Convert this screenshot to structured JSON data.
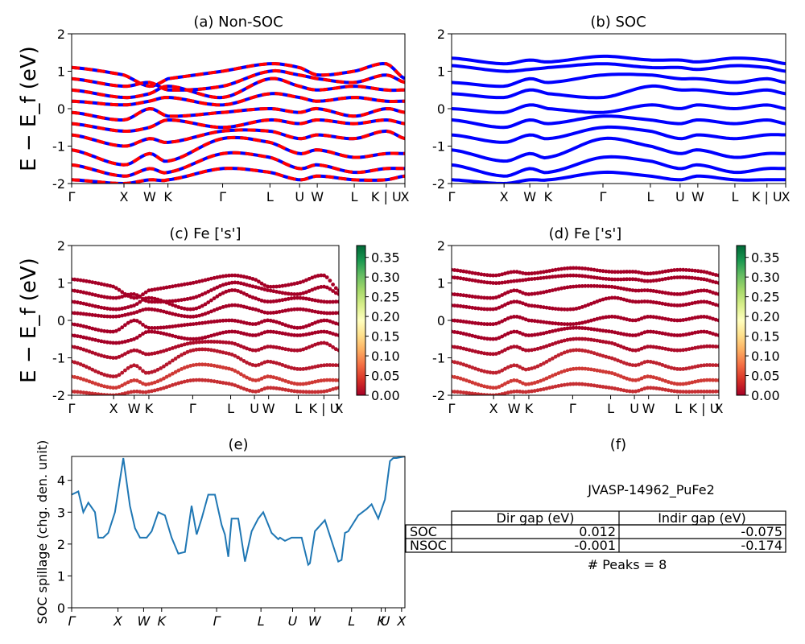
{
  "colors": {
    "blue": "#0000ff",
    "red": "#ff0000",
    "spillage_line": "#1f77b4",
    "projection_low": "#a50026",
    "projection_high": "#006837"
  },
  "kpath_labels": [
    "Γ",
    "X",
    "W",
    "K",
    "Γ",
    "L",
    "U",
    "W",
    "L",
    "K | U",
    "X"
  ],
  "spillage_kpath_labels": [
    "Γ",
    "X",
    "W",
    "K",
    "Γ",
    "L",
    "U",
    "W",
    "L",
    "K",
    "U",
    "X"
  ],
  "ylabel_energy": "E − E_f (eV)",
  "ylabel_spillage": "SOC spillage (chg. den. unit)",
  "colorbar_ticks": [
    "0.00",
    "0.05",
    "0.10",
    "0.15",
    "0.20",
    "0.25",
    "0.30",
    "0.35"
  ],
  "chart_data": [
    {
      "panel": "a",
      "type": "line",
      "title": "(a) Non-SOC",
      "ylabel": "E − E_f (eV)",
      "ylim": [
        -2,
        2
      ],
      "yticks": [
        -2,
        -1,
        0,
        1,
        2
      ],
      "series": [
        {
          "values": [
            1.1,
            0.9,
            0.6,
            0.8,
            1.0,
            1.2,
            1.1,
            0.9,
            1.0,
            1.2,
            0.8
          ]
        },
        {
          "values": [
            0.8,
            0.6,
            0.7,
            0.5,
            0.6,
            1.0,
            0.9,
            0.8,
            0.7,
            0.9,
            0.7
          ]
        },
        {
          "values": [
            0.5,
            0.3,
            0.4,
            0.6,
            0.3,
            0.8,
            0.6,
            0.5,
            0.6,
            0.5,
            0.5
          ]
        },
        {
          "values": [
            0.2,
            0.1,
            0.2,
            0.3,
            0.1,
            0.4,
            0.3,
            0.2,
            0.3,
            0.2,
            0.2
          ]
        },
        {
          "values": [
            -0.1,
            -0.3,
            0.0,
            -0.2,
            -0.1,
            0.0,
            -0.1,
            0.0,
            -0.2,
            0.0,
            -0.1
          ]
        },
        {
          "values": [
            -0.4,
            -0.6,
            -0.5,
            -0.3,
            -0.5,
            -0.3,
            -0.4,
            -0.3,
            -0.4,
            -0.3,
            -0.4
          ]
        },
        {
          "values": [
            -0.7,
            -1.0,
            -0.8,
            -0.9,
            -0.6,
            -0.6,
            -0.8,
            -0.7,
            -0.8,
            -0.6,
            -0.8
          ]
        },
        {
          "values": [
            -1.1,
            -1.5,
            -1.2,
            -1.4,
            -0.8,
            -0.9,
            -1.2,
            -1.1,
            -1.3,
            -1.2,
            -1.2
          ]
        },
        {
          "values": [
            -1.5,
            -1.8,
            -1.6,
            -1.7,
            -1.2,
            -1.3,
            -1.6,
            -1.5,
            -1.7,
            -1.6,
            -1.6
          ]
        },
        {
          "values": [
            -1.9,
            -2.0,
            -1.9,
            -1.9,
            -1.6,
            -1.7,
            -1.9,
            -1.8,
            -1.9,
            -1.9,
            -1.8
          ]
        }
      ]
    },
    {
      "panel": "b",
      "type": "line",
      "title": "(b) SOC",
      "ylim": [
        -2,
        2
      ],
      "yticks": [
        -2,
        -1,
        0,
        1,
        2
      ],
      "series": [
        {
          "values": [
            1.35,
            1.2,
            1.3,
            1.25,
            1.4,
            1.3,
            1.3,
            1.25,
            1.35,
            1.3,
            1.2
          ]
        },
        {
          "values": [
            1.15,
            1.0,
            1.05,
            1.1,
            1.2,
            1.1,
            1.1,
            1.05,
            1.15,
            1.1,
            1.0
          ]
        },
        {
          "values": [
            0.7,
            0.6,
            0.8,
            0.7,
            0.9,
            0.9,
            0.8,
            0.8,
            0.7,
            0.8,
            0.7
          ]
        },
        {
          "values": [
            0.4,
            0.3,
            0.5,
            0.4,
            0.3,
            0.6,
            0.5,
            0.5,
            0.4,
            0.5,
            0.4
          ]
        },
        {
          "values": [
            0.0,
            -0.1,
            0.1,
            0.0,
            -0.1,
            0.1,
            0.0,
            0.1,
            0.0,
            0.1,
            0.0
          ]
        },
        {
          "values": [
            -0.3,
            -0.5,
            -0.3,
            -0.4,
            -0.2,
            -0.3,
            -0.4,
            -0.3,
            -0.4,
            -0.3,
            -0.4
          ]
        },
        {
          "values": [
            -0.7,
            -0.9,
            -0.7,
            -0.8,
            -0.5,
            -0.6,
            -0.8,
            -0.7,
            -0.8,
            -0.7,
            -0.7
          ]
        },
        {
          "values": [
            -1.1,
            -1.4,
            -1.2,
            -1.3,
            -0.8,
            -1.0,
            -1.2,
            -1.1,
            -1.3,
            -1.2,
            -1.2
          ]
        },
        {
          "values": [
            -1.5,
            -1.8,
            -1.6,
            -1.7,
            -1.3,
            -1.4,
            -1.6,
            -1.5,
            -1.7,
            -1.6,
            -1.6
          ]
        },
        {
          "values": [
            -1.9,
            -2.0,
            -1.9,
            -1.9,
            -1.7,
            -1.8,
            -1.9,
            -1.8,
            -1.9,
            -1.9,
            -1.9
          ]
        }
      ]
    },
    {
      "panel": "c",
      "type": "scatter",
      "title": "(c)  Fe ['s']",
      "ylabel": "E − E_f (eV)",
      "ylim": [
        -2,
        2
      ],
      "yticks": [
        -2,
        -1,
        0,
        1,
        2
      ],
      "colorbar_range": [
        0,
        0.38
      ],
      "series": [
        {
          "values": [
            1.1,
            0.9,
            0.6,
            0.8,
            1.0,
            1.2,
            1.1,
            0.9,
            1.0,
            1.2,
            0.8
          ],
          "weight": 0.0
        },
        {
          "values": [
            0.8,
            0.6,
            0.7,
            0.5,
            0.6,
            1.0,
            0.9,
            0.8,
            0.7,
            0.9,
            0.7
          ],
          "weight": 0.0
        },
        {
          "values": [
            0.5,
            0.3,
            0.4,
            0.6,
            0.3,
            0.8,
            0.6,
            0.5,
            0.6,
            0.5,
            0.5
          ],
          "weight": 0.0
        },
        {
          "values": [
            0.2,
            0.1,
            0.2,
            0.3,
            0.1,
            0.4,
            0.3,
            0.2,
            0.3,
            0.2,
            0.2
          ],
          "weight": 0.0
        },
        {
          "values": [
            -0.1,
            -0.3,
            0.0,
            -0.2,
            -0.1,
            0.0,
            -0.1,
            0.0,
            -0.2,
            0.0,
            -0.1
          ],
          "weight": 0.0
        },
        {
          "values": [
            -0.4,
            -0.6,
            -0.5,
            -0.3,
            -0.5,
            -0.3,
            -0.4,
            -0.3,
            -0.4,
            -0.3,
            -0.4
          ],
          "weight": 0.0
        },
        {
          "values": [
            -0.7,
            -1.0,
            -0.8,
            -0.9,
            -0.6,
            -0.6,
            -0.8,
            -0.7,
            -0.8,
            -0.6,
            -0.8
          ],
          "weight": 0.01
        },
        {
          "values": [
            -1.1,
            -1.5,
            -1.2,
            -1.4,
            -0.8,
            -0.9,
            -1.2,
            -1.1,
            -1.3,
            -1.2,
            -1.2
          ],
          "weight": 0.02
        },
        {
          "values": [
            -1.5,
            -1.8,
            -1.6,
            -1.7,
            -1.2,
            -1.3,
            -1.6,
            -1.5,
            -1.7,
            -1.6,
            -1.6
          ],
          "weight": 0.05
        },
        {
          "values": [
            -1.9,
            -2.0,
            -1.9,
            -1.9,
            -1.6,
            -1.7,
            -1.9,
            -1.8,
            -1.9,
            -1.9,
            -1.8
          ],
          "weight": 0.04
        }
      ]
    },
    {
      "panel": "d",
      "type": "scatter",
      "title": "(d) Fe ['s']",
      "ylim": [
        -2,
        2
      ],
      "yticks": [
        -2,
        -1,
        0,
        1,
        2
      ],
      "colorbar_range": [
        0,
        0.38
      ],
      "series": [
        {
          "values": [
            1.35,
            1.2,
            1.3,
            1.25,
            1.4,
            1.3,
            1.3,
            1.25,
            1.35,
            1.3,
            1.2
          ],
          "weight": 0.0
        },
        {
          "values": [
            1.15,
            1.0,
            1.05,
            1.1,
            1.2,
            1.1,
            1.1,
            1.05,
            1.15,
            1.1,
            1.0
          ],
          "weight": 0.0
        },
        {
          "values": [
            0.7,
            0.6,
            0.8,
            0.7,
            0.9,
            0.9,
            0.8,
            0.8,
            0.7,
            0.8,
            0.7
          ],
          "weight": 0.0
        },
        {
          "values": [
            0.4,
            0.3,
            0.5,
            0.4,
            0.3,
            0.6,
            0.5,
            0.5,
            0.4,
            0.5,
            0.4
          ],
          "weight": 0.0
        },
        {
          "values": [
            0.0,
            -0.1,
            0.1,
            0.0,
            -0.1,
            0.1,
            0.0,
            0.1,
            0.0,
            0.1,
            0.0
          ],
          "weight": 0.0
        },
        {
          "values": [
            -0.3,
            -0.5,
            -0.3,
            -0.4,
            -0.2,
            -0.3,
            -0.4,
            -0.3,
            -0.4,
            -0.3,
            -0.4
          ],
          "weight": 0.0
        },
        {
          "values": [
            -0.7,
            -0.9,
            -0.7,
            -0.8,
            -0.5,
            -0.6,
            -0.8,
            -0.7,
            -0.8,
            -0.7,
            -0.7
          ],
          "weight": 0.01
        },
        {
          "values": [
            -1.1,
            -1.4,
            -1.2,
            -1.3,
            -0.8,
            -1.0,
            -1.2,
            -1.1,
            -1.3,
            -1.2,
            -1.2
          ],
          "weight": 0.03
        },
        {
          "values": [
            -1.5,
            -1.8,
            -1.6,
            -1.7,
            -1.3,
            -1.4,
            -1.6,
            -1.5,
            -1.7,
            -1.6,
            -1.6
          ],
          "weight": 0.05
        },
        {
          "values": [
            -1.9,
            -2.0,
            -1.9,
            -1.9,
            -1.7,
            -1.8,
            -1.9,
            -1.8,
            -1.9,
            -1.9,
            -1.9
          ],
          "weight": 0.04
        }
      ]
    },
    {
      "panel": "e",
      "type": "line",
      "title": "(e)",
      "ylabel": "SOC spillage (chg. den. unit)",
      "ylim": [
        0,
        4.75
      ],
      "yticks": [
        0,
        1,
        2,
        3,
        4
      ],
      "x": [
        0,
        0.02,
        0.035,
        0.05,
        0.07,
        0.08,
        0.095,
        0.11,
        0.13,
        0.155,
        0.175,
        0.19,
        0.205,
        0.225,
        0.24,
        0.26,
        0.28,
        0.3,
        0.32,
        0.34,
        0.36,
        0.375,
        0.39,
        0.41,
        0.43,
        0.45,
        0.46,
        0.47,
        0.48,
        0.5,
        0.52,
        0.54,
        0.56,
        0.575,
        0.6,
        0.62,
        0.625,
        0.64,
        0.66,
        0.69,
        0.71,
        0.715,
        0.73,
        0.76,
        0.8,
        0.81,
        0.82,
        0.83,
        0.86,
        0.885,
        0.9,
        0.92,
        0.94,
        0.955,
        0.965,
        0.975,
        1.0
      ],
      "values": [
        3.55,
        3.65,
        3.0,
        3.3,
        3.0,
        2.2,
        2.2,
        2.35,
        3.0,
        4.7,
        3.2,
        2.5,
        2.2,
        2.2,
        2.4,
        3.0,
        2.9,
        2.2,
        1.7,
        1.75,
        3.2,
        2.3,
        2.8,
        3.55,
        3.55,
        2.6,
        2.3,
        1.6,
        2.8,
        2.8,
        1.45,
        2.4,
        2.8,
        3.0,
        2.35,
        2.15,
        2.2,
        2.1,
        2.2,
        2.2,
        1.35,
        1.4,
        2.4,
        2.75,
        1.45,
        1.5,
        2.35,
        2.4,
        2.9,
        3.1,
        3.25,
        2.8,
        3.4,
        4.6,
        4.7,
        4.7,
        4.75
      ]
    }
  ],
  "table": {
    "title": "(f)",
    "material": "JVASP-14962_PuFe2",
    "columns": [
      "Dir gap (eV)",
      "Indir gap (eV)"
    ],
    "rows": [
      {
        "label": "SOC",
        "values": [
          "0.012",
          "-0.075"
        ]
      },
      {
        "label": "NSOC",
        "values": [
          "-0.001",
          "-0.174"
        ]
      }
    ],
    "peaks": "# Peaks = 8"
  }
}
